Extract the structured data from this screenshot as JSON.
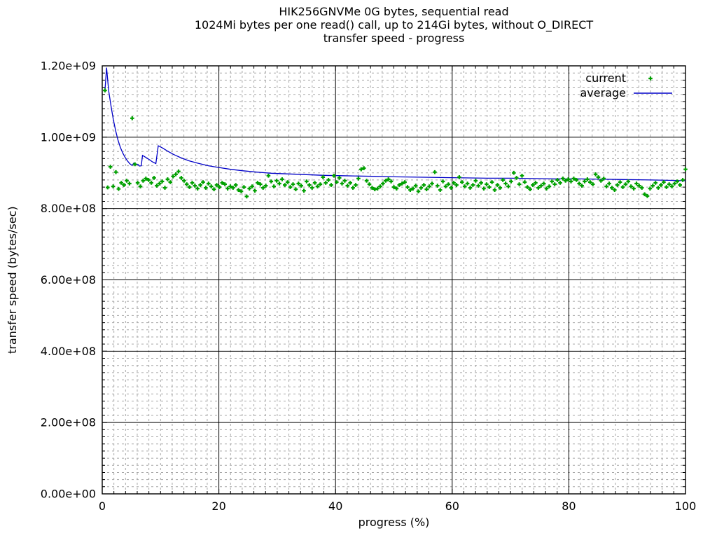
{
  "title": {
    "line1": "HIK256GNVMe 0G bytes, sequential read",
    "line2": "1024Mi bytes per one read() call, up to 214Gi bytes, without O_DIRECT",
    "line3": "transfer speed - progress"
  },
  "axes": {
    "x": {
      "label": "progress (%)",
      "min": 0,
      "max": 100,
      "major_ticks": [
        0,
        20,
        40,
        60,
        80,
        100
      ],
      "minor_step": 2
    },
    "y": {
      "label": "transfer speed (bytes/sec)",
      "min": 0,
      "max_e8": 12,
      "major_tick_labels": [
        "0.00e+00",
        "2.00e+08",
        "4.00e+08",
        "6.00e+08",
        "8.00e+08",
        "1.00e+09",
        "1.20e+09"
      ],
      "major_step_e8": 2,
      "minor_step_e8": 0.2
    }
  },
  "legend": [
    {
      "label": "current",
      "sample": "point",
      "color": "#00a000"
    },
    {
      "label": "average",
      "sample": "line",
      "color": "#0000c8"
    }
  ],
  "plot_style": {
    "background": "#ffffff",
    "border_color": "#000000",
    "major_grid_color": "#000000",
    "minor_grid_color": "#a8a8a8",
    "point_color": "#00a000",
    "line_color": "#0000c8"
  },
  "chart_data": {
    "type": "scatter",
    "title": "transfer speed - progress",
    "xlabel": "progress (%)",
    "ylabel": "transfer speed (bytes/sec)",
    "xlim": [
      0,
      100
    ],
    "ylim_e8": [
      0,
      12
    ],
    "y_unit": "1e8 bytes/sec",
    "series": [
      {
        "name": "current",
        "style": "points",
        "color": "#00a000",
        "x_start": 0.4673,
        "x_step": 0.4673,
        "values_e8": [
          11.31,
          8.59,
          9.17,
          8.62,
          9.02,
          8.55,
          8.72,
          8.66,
          8.78,
          8.7,
          10.53,
          9.24,
          8.72,
          8.62,
          8.78,
          8.84,
          8.8,
          8.72,
          8.86,
          8.64,
          8.7,
          8.76,
          8.58,
          8.82,
          8.74,
          8.9,
          8.96,
          9.04,
          8.86,
          8.78,
          8.68,
          8.6,
          8.72,
          8.64,
          8.56,
          8.66,
          8.74,
          8.58,
          8.7,
          8.62,
          8.54,
          8.66,
          8.6,
          8.72,
          8.68,
          8.56,
          8.62,
          8.58,
          8.66,
          8.52,
          8.48,
          8.6,
          8.34,
          8.56,
          8.62,
          8.5,
          8.72,
          8.68,
          8.58,
          8.64,
          8.92,
          8.76,
          8.62,
          8.78,
          8.7,
          8.82,
          8.66,
          8.74,
          8.6,
          8.68,
          8.54,
          8.7,
          8.64,
          8.5,
          8.76,
          8.66,
          8.58,
          8.72,
          8.62,
          8.68,
          8.88,
          8.72,
          8.8,
          8.66,
          8.92,
          8.74,
          8.86,
          8.7,
          8.78,
          8.64,
          8.72,
          8.58,
          8.66,
          8.84,
          9.1,
          9.13,
          8.78,
          8.68,
          8.58,
          8.54,
          8.56,
          8.62,
          8.7,
          8.78,
          8.82,
          8.76,
          8.6,
          8.56,
          8.66,
          8.7,
          8.74,
          8.6,
          8.52,
          8.56,
          8.64,
          8.48,
          8.58,
          8.66,
          8.54,
          8.62,
          8.7,
          9.02,
          8.64,
          8.52,
          8.76,
          8.62,
          8.68,
          8.58,
          8.72,
          8.66,
          8.88,
          8.74,
          8.62,
          8.7,
          8.58,
          8.66,
          8.78,
          8.64,
          8.72,
          8.56,
          8.68,
          8.6,
          8.74,
          8.52,
          8.66,
          8.58,
          8.8,
          8.7,
          8.62,
          8.76,
          9.0,
          8.86,
          8.68,
          8.92,
          8.74,
          8.6,
          8.54,
          8.66,
          8.72,
          8.58,
          8.64,
          8.7,
          8.56,
          8.62,
          8.76,
          8.68,
          8.8,
          8.72,
          8.84,
          8.78,
          8.82,
          8.76,
          8.84,
          8.8,
          8.7,
          8.64,
          8.76,
          8.82,
          8.74,
          8.68,
          8.96,
          8.88,
          8.78,
          8.84,
          8.62,
          8.7,
          8.58,
          8.52,
          8.66,
          8.74,
          8.6,
          8.68,
          8.76,
          8.62,
          8.56,
          8.7,
          8.64,
          8.58,
          8.4,
          8.35,
          8.56,
          8.64,
          8.72,
          8.58,
          8.66,
          8.74,
          8.6,
          8.68,
          8.62,
          8.7,
          8.76,
          8.66,
          8.8,
          9.1
        ]
      },
      {
        "name": "average",
        "style": "line",
        "color": "#0000c8",
        "points_e8": [
          [
            0.47,
            11.31
          ],
          [
            0.75,
            11.95
          ],
          [
            1.1,
            11.3
          ],
          [
            1.5,
            10.88
          ],
          [
            1.9,
            10.5
          ],
          [
            2.3,
            10.18
          ],
          [
            2.7,
            9.92
          ],
          [
            3.1,
            9.72
          ],
          [
            3.5,
            9.56
          ],
          [
            3.9,
            9.44
          ],
          [
            4.3,
            9.34
          ],
          [
            4.7,
            9.26
          ],
          [
            5.1,
            9.21
          ],
          [
            5.4,
            9.27
          ],
          [
            5.7,
            9.22
          ],
          [
            6.1,
            9.24
          ],
          [
            6.4,
            9.19
          ],
          [
            6.7,
            9.2
          ],
          [
            6.9,
            9.49
          ],
          [
            7.4,
            9.44
          ],
          [
            8.0,
            9.38
          ],
          [
            8.6,
            9.31
          ],
          [
            9.2,
            9.26
          ],
          [
            9.6,
            9.76
          ],
          [
            10.3,
            9.7
          ],
          [
            11.2,
            9.61
          ],
          [
            12.2,
            9.52
          ],
          [
            13.4,
            9.43
          ],
          [
            14.8,
            9.34
          ],
          [
            16.4,
            9.27
          ],
          [
            18.2,
            9.2
          ],
          [
            20,
            9.15
          ],
          [
            22,
            9.1
          ],
          [
            24,
            9.06
          ],
          [
            26.5,
            9.02
          ],
          [
            29,
            8.99
          ],
          [
            32,
            8.97
          ],
          [
            35,
            8.95
          ],
          [
            38,
            8.93
          ],
          [
            41,
            8.92
          ],
          [
            44,
            8.91
          ],
          [
            47,
            8.9
          ],
          [
            50,
            8.89
          ],
          [
            54,
            8.88
          ],
          [
            58,
            8.87
          ],
          [
            62,
            8.86
          ],
          [
            66,
            8.85
          ],
          [
            70,
            8.85
          ],
          [
            74,
            8.84
          ],
          [
            78,
            8.83
          ],
          [
            82,
            8.83
          ],
          [
            86,
            8.82
          ],
          [
            90,
            8.81
          ],
          [
            94,
            8.8
          ],
          [
            97,
            8.79
          ],
          [
            100,
            8.78
          ]
        ]
      }
    ]
  }
}
